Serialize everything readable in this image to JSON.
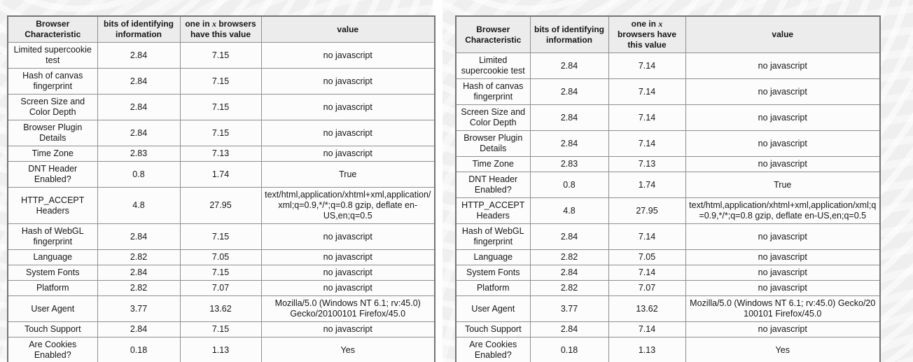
{
  "header": {
    "characteristic": "Browser Characteristic",
    "bits": "bits of identifying information",
    "one_in_pre": "one in ",
    "one_in_x": "x",
    "one_in_post": " browsers have this value",
    "value": "value"
  },
  "tables": [
    {
      "side": "left",
      "rows": [
        {
          "characteristic": "Limited supercookie test",
          "bits": "2.84",
          "one_in": "7.15",
          "value": "no javascript"
        },
        {
          "characteristic": "Hash of canvas fingerprint",
          "bits": "2.84",
          "one_in": "7.15",
          "value": "no javascript"
        },
        {
          "characteristic": "Screen Size and Color Depth",
          "bits": "2.84",
          "one_in": "7.15",
          "value": "no javascript"
        },
        {
          "characteristic": "Browser Plugin Details",
          "bits": "2.84",
          "one_in": "7.15",
          "value": "no javascript"
        },
        {
          "characteristic": "Time Zone",
          "bits": "2.83",
          "one_in": "7.13",
          "value": "no javascript"
        },
        {
          "characteristic": "DNT Header Enabled?",
          "bits": "0.8",
          "one_in": "1.74",
          "value": "True"
        },
        {
          "characteristic": "HTTP_ACCEPT Headers",
          "bits": "4.8",
          "one_in": "27.95",
          "value": "text/html,application/xhtml+xml,application/xml;q=0.9,*/*;q=0.8 gzip, deflate en-US,en;q=0.5"
        },
        {
          "characteristic": "Hash of WebGL fingerprint",
          "bits": "2.84",
          "one_in": "7.15",
          "value": "no javascript"
        },
        {
          "characteristic": "Language",
          "bits": "2.82",
          "one_in": "7.05",
          "value": "no javascript"
        },
        {
          "characteristic": "System Fonts",
          "bits": "2.84",
          "one_in": "7.15",
          "value": "no javascript"
        },
        {
          "characteristic": "Platform",
          "bits": "2.82",
          "one_in": "7.07",
          "value": "no javascript"
        },
        {
          "characteristic": "User Agent",
          "bits": "3.77",
          "one_in": "13.62",
          "value": "Mozilla/5.0 (Windows NT 6.1; rv:45.0) Gecko/20100101 Firefox/45.0"
        },
        {
          "characteristic": "Touch Support",
          "bits": "2.84",
          "one_in": "7.15",
          "value": "no javascript"
        },
        {
          "characteristic": "Are Cookies Enabled?",
          "bits": "0.18",
          "one_in": "1.13",
          "value": "Yes"
        }
      ]
    },
    {
      "side": "right",
      "rows": [
        {
          "characteristic": "Limited supercookie test",
          "bits": "2.84",
          "one_in": "7.14",
          "value": "no javascript"
        },
        {
          "characteristic": "Hash of canvas fingerprint",
          "bits": "2.84",
          "one_in": "7.14",
          "value": "no javascript"
        },
        {
          "characteristic": "Screen Size and Color Depth",
          "bits": "2.84",
          "one_in": "7.14",
          "value": "no javascript"
        },
        {
          "characteristic": "Browser Plugin Details",
          "bits": "2.84",
          "one_in": "7.14",
          "value": "no javascript"
        },
        {
          "characteristic": "Time Zone",
          "bits": "2.83",
          "one_in": "7.13",
          "value": "no javascript"
        },
        {
          "characteristic": "DNT Header Enabled?",
          "bits": "0.8",
          "one_in": "1.74",
          "value": "True"
        },
        {
          "characteristic": "HTTP_ACCEPT Headers",
          "bits": "4.8",
          "one_in": "27.95",
          "value": "text/html,application/xhtml+xml,application/xml;q=0.9,*/*;q=0.8 gzip, deflate en-US,en;q=0.5"
        },
        {
          "characteristic": "Hash of WebGL fingerprint",
          "bits": "2.84",
          "one_in": "7.14",
          "value": "no javascript"
        },
        {
          "characteristic": "Language",
          "bits": "2.82",
          "one_in": "7.05",
          "value": "no javascript"
        },
        {
          "characteristic": "System Fonts",
          "bits": "2.84",
          "one_in": "7.14",
          "value": "no javascript"
        },
        {
          "characteristic": "Platform",
          "bits": "2.82",
          "one_in": "7.07",
          "value": "no javascript"
        },
        {
          "characteristic": "User Agent",
          "bits": "3.77",
          "one_in": "13.62",
          "value": "Mozilla/5.0 (Windows NT 6.1; rv:45.0) Gecko/20100101 Firefox/45.0"
        },
        {
          "characteristic": "Touch Support",
          "bits": "2.84",
          "one_in": "7.14",
          "value": "no javascript"
        },
        {
          "characteristic": "Are Cookies Enabled?",
          "bits": "0.18",
          "one_in": "1.13",
          "value": "Yes"
        }
      ]
    }
  ]
}
